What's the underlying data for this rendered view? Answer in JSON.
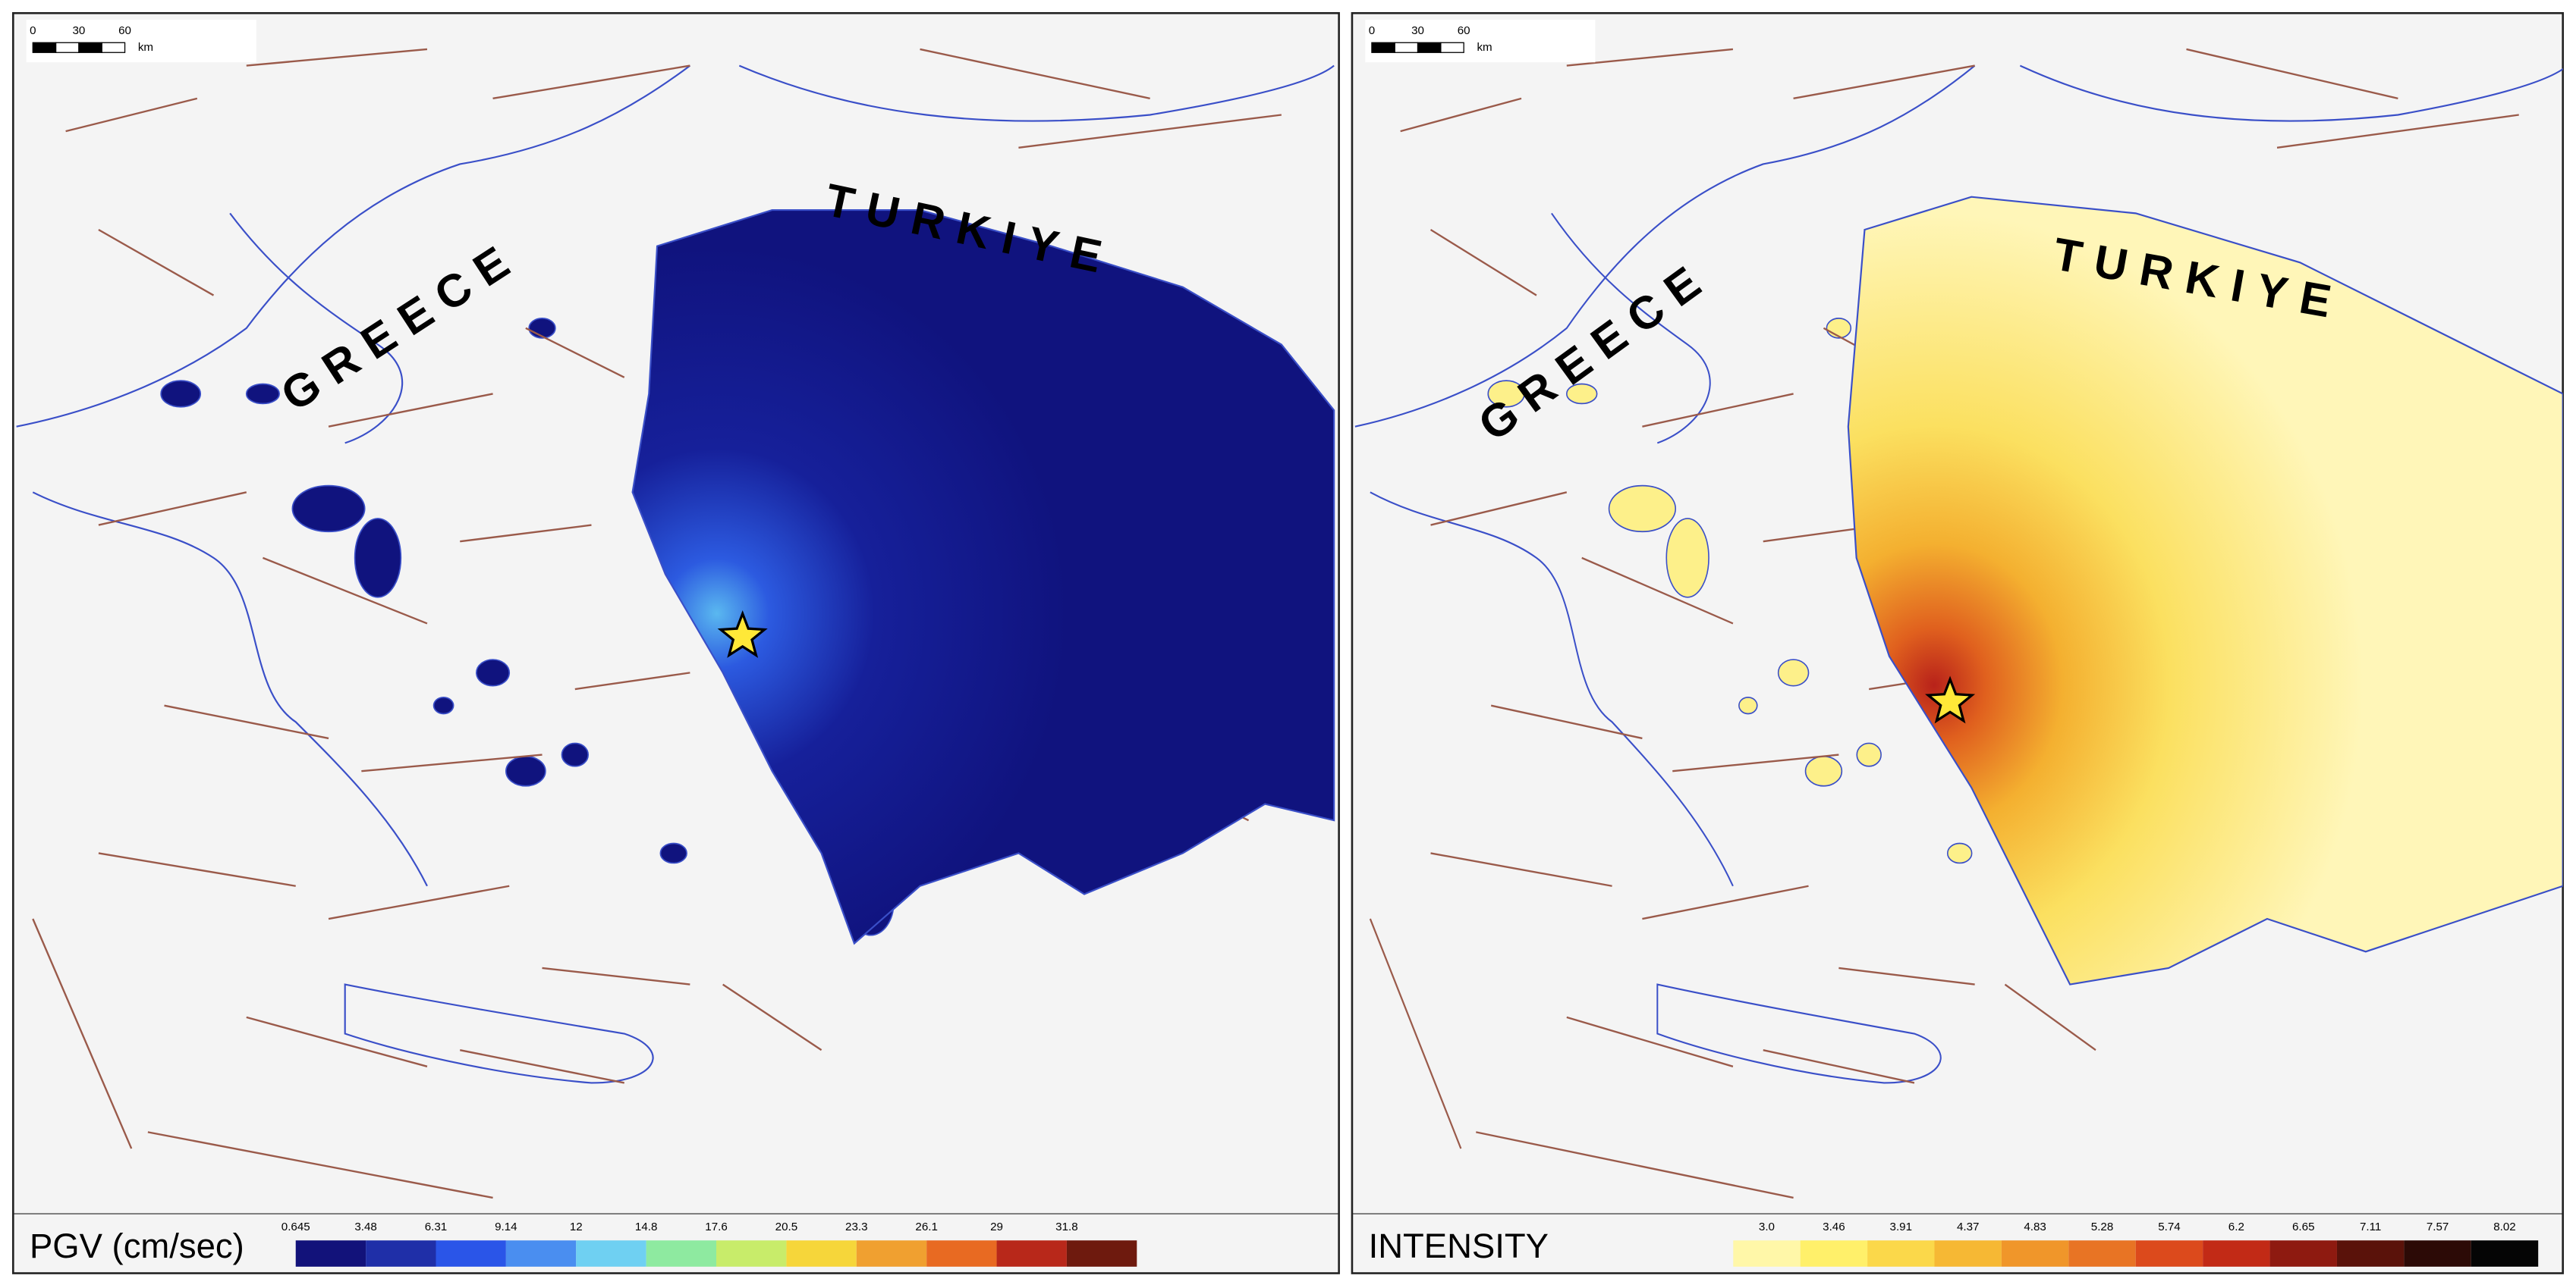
{
  "panels": [
    {
      "scale_bar": {
        "labels": [
          "0",
          "30",
          "60"
        ],
        "unit": "km"
      },
      "countries": [
        "GREECE",
        "TURKIYE"
      ],
      "legend": {
        "title": "PGV (cm/sec)",
        "tick_labels": [
          "0.645",
          "3.48",
          "6.31",
          "9.14",
          "12",
          "14.8",
          "17.6",
          "20.5",
          "23.3",
          "26.1",
          "29",
          "31.8"
        ],
        "colors": [
          "#12127a",
          "#1f2fa8",
          "#2a55e8",
          "#4a8ef0",
          "#6fd0f2",
          "#8eeaa0",
          "#c8ec6a",
          "#f6d63a",
          "#f0a030",
          "#e86a22",
          "#b8281a",
          "#6e1a0e"
        ]
      }
    },
    {
      "scale_bar": {
        "labels": [
          "0",
          "30",
          "60"
        ],
        "unit": "km"
      },
      "countries": [
        "GREECE",
        "TURKIYE"
      ],
      "legend": {
        "title": "INTENSITY",
        "tick_labels": [
          "3.0",
          "3.46",
          "3.91",
          "4.37",
          "4.83",
          "5.28",
          "5.74",
          "6.2",
          "6.65",
          "7.11",
          "7.57",
          "8.02"
        ],
        "colors": [
          "#fff7a8",
          "#fff06a",
          "#fbd84a",
          "#f6b834",
          "#f0962a",
          "#e87424",
          "#dc4a1c",
          "#c22a16",
          "#8e1a10",
          "#5a120a",
          "#2c0a06",
          "#050505"
        ]
      }
    }
  ]
}
